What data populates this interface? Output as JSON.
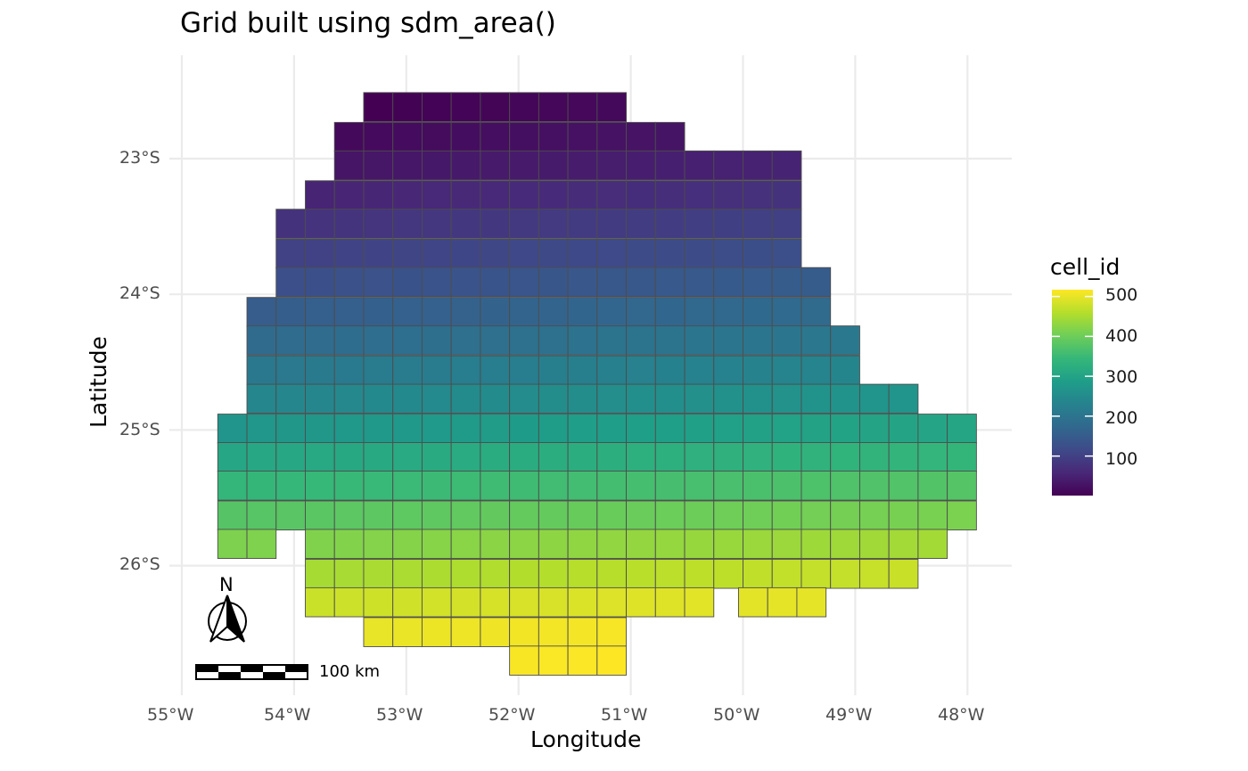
{
  "title": "Grid built using sdm_area()",
  "x_axis": {
    "title": "Longitude",
    "ticks": [
      "55°W",
      "54°W",
      "53°W",
      "52°W",
      "51°W",
      "50°W",
      "49°W",
      "48°W"
    ]
  },
  "y_axis": {
    "title": "Latitude",
    "ticks": [
      "23°S",
      "24°S",
      "25°S",
      "26°S"
    ]
  },
  "legend": {
    "title": "cell_id",
    "labels": [
      "500",
      "400",
      "300",
      "200",
      "100"
    ]
  },
  "colormap": {
    "name": "viridis",
    "stops": [
      "#440154",
      "#482878",
      "#3e4a89",
      "#31688e",
      "#26828e",
      "#1f9e89",
      "#35b779",
      "#6ece58",
      "#b5de2b",
      "#fde725"
    ]
  },
  "north_arrow": {
    "label": "N"
  },
  "scale_bar": {
    "label": "100 km"
  },
  "map_data": {
    "cell_id_range": [
      1,
      517
    ],
    "rows": [
      {
        "lat": -22.62,
        "cols": [
          [
            -53.38,
            -51.08
          ]
        ]
      },
      {
        "lat": -22.84,
        "cols": [
          [
            -53.64,
            -50.56
          ]
        ]
      },
      {
        "lat": -23.05,
        "cols": [
          [
            -53.64,
            -49.52
          ]
        ]
      },
      {
        "lat": -23.27,
        "cols": [
          [
            -53.9,
            -49.52
          ]
        ]
      },
      {
        "lat": -23.48,
        "cols": [
          [
            -54.16,
            -49.52
          ]
        ]
      },
      {
        "lat": -23.7,
        "cols": [
          [
            -54.16,
            -49.52
          ]
        ]
      },
      {
        "lat": -23.91,
        "cols": [
          [
            -54.16,
            -49.26
          ]
        ]
      },
      {
        "lat": -24.13,
        "cols": [
          [
            -54.42,
            -49.26
          ]
        ]
      },
      {
        "lat": -24.34,
        "cols": [
          [
            -54.42,
            -49.0
          ]
        ]
      },
      {
        "lat": -24.56,
        "cols": [
          [
            -54.42,
            -49.0
          ]
        ]
      },
      {
        "lat": -24.77,
        "cols": [
          [
            -54.42,
            -48.48
          ]
        ]
      },
      {
        "lat": -24.99,
        "cols": [
          [
            -54.68,
            -47.96
          ]
        ]
      },
      {
        "lat": -25.2,
        "cols": [
          [
            -54.68,
            -47.96
          ]
        ]
      },
      {
        "lat": -25.41,
        "cols": [
          [
            -54.68,
            -47.96
          ]
        ]
      },
      {
        "lat": -25.63,
        "cols": [
          [
            -54.68,
            -47.96
          ]
        ]
      },
      {
        "lat": -25.84,
        "cols": [
          [
            -54.68,
            -54.16
          ],
          [
            -53.9,
            -48.22
          ]
        ]
      },
      {
        "lat": -26.06,
        "cols": [
          [
            -53.9,
            -48.48
          ]
        ]
      },
      {
        "lat": -26.27,
        "cols": [
          [
            -53.9,
            -50.3
          ],
          [
            -50.04,
            -49.26
          ]
        ]
      },
      {
        "lat": -26.49,
        "cols": [
          [
            -53.38,
            -51.08
          ]
        ]
      },
      {
        "lat": -26.7,
        "cols": [
          [
            -52.08,
            -51.08
          ]
        ]
      }
    ]
  }
}
